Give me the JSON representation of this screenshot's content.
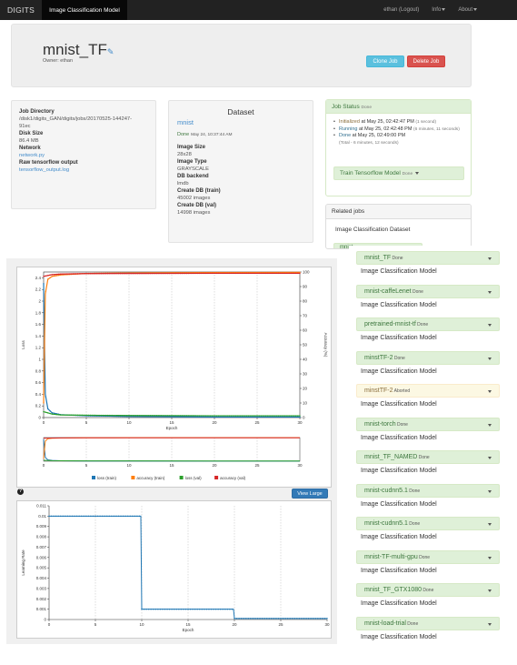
{
  "navbar": {
    "brand": "DIGITS",
    "active_tab": "Image Classification Model",
    "user": "ethan (Logout)",
    "info": "Info",
    "about": "About"
  },
  "header": {
    "job_name": "mnist_TF",
    "owner": "Owner: ethan",
    "clone_label": "Clone Job",
    "delete_label": "Delete Job"
  },
  "job_info": {
    "job_directory_label": "Job Directory",
    "job_directory_value_line1": "/disk1/digits_GAN/digits/jobs/20170525-144247-",
    "job_directory_value_line2": "91ec",
    "disk_size_label": "Disk Size",
    "disk_size_value": "86.4 MB",
    "network_label": "Network",
    "network_link": "network.py",
    "raw_output_label": "Raw tensorflow output",
    "raw_output_link": "tensorflow_output.log"
  },
  "dataset": {
    "title": "Dataset",
    "name": "mnist",
    "status": "Done",
    "status_time": "May 24, 10:37:44 AM",
    "image_size_label": "Image Size",
    "image_size_value": "28x28",
    "image_type_label": "Image Type",
    "image_type_value": "GRAYSCALE",
    "backend_label": "DB backend",
    "backend_value": "lmdb",
    "train_db_label": "Create DB (train)",
    "train_db_value": "45002 images",
    "val_db_label": "Create DB (val)",
    "val_db_value": "14998 images"
  },
  "job_status": {
    "heading": "Job Status",
    "heading_status": "Done",
    "items": [
      {
        "state": "Initialized",
        "text": " at May 25, 02:42:47 PM",
        "dur": "(1 second)"
      },
      {
        "state": "Running",
        "text": " at May 25, 02:42:48 PM",
        "dur": "(6 minutes, 11 seconds)"
      },
      {
        "state": "Done",
        "text": " at May 25, 02:49:00 PM",
        "dur": ""
      }
    ],
    "total": "(Total - 6 minutes, 12 seconds)",
    "model_button": "Train Tensorflow Model",
    "model_button_status": "Done"
  },
  "related_jobs": {
    "heading": "Related jobs",
    "first_type": "Image Classification Dataset",
    "partial_name": "mnist",
    "partial_status": "Done",
    "items": [
      {
        "name": "mnist_TF",
        "status": "Done",
        "type": "Image Classification Model"
      },
      {
        "name": "mnist-caffeLenet",
        "status": "Done",
        "type": "Image Classification Model"
      },
      {
        "name": "pretrained-mnist-tf",
        "status": "Done",
        "type": "Image Classification Model"
      },
      {
        "name": "minstTF-2",
        "status": "Done",
        "type": "Image Classification Model"
      },
      {
        "name": "minstTF-2",
        "status": "Aborted",
        "type": "Image Classification Model"
      },
      {
        "name": "mnist-torch",
        "status": "Done",
        "type": "Image Classification Model"
      },
      {
        "name": "mnist_TF_NAMED",
        "status": "Done",
        "type": "Image Classification Model"
      },
      {
        "name": "mnist-cudnn5.1",
        "status": "Done",
        "type": "Image Classification Model"
      },
      {
        "name": "mnist-cudnn5.1",
        "status": "Done",
        "type": "Image Classification Model"
      },
      {
        "name": "mnist-TF-multi-gpu",
        "status": "Done",
        "type": "Image Classification Model"
      },
      {
        "name": "mnist_TF_GTX1080",
        "status": "Done",
        "type": "Image Classification Model"
      },
      {
        "name": "mnist-load-trial",
        "status": "Done",
        "type": "Image Classification Model"
      }
    ]
  },
  "view_large_label": "View Large",
  "info_icon_glyph": "?",
  "edit_icon": "pencil-icon",
  "chart_data": [
    {
      "type": "line",
      "xlabel": "Epoch",
      "ylabel": "Loss",
      "y2label": "Accuracy (%)",
      "xlim": [
        0,
        30
      ],
      "ylim": [
        0,
        2.5
      ],
      "y2lim": [
        0,
        100
      ],
      "xticks": [
        "0",
        "5",
        "10",
        "15",
        "20",
        "25",
        "30"
      ],
      "yticks": [
        "0",
        "0.2",
        "0.4",
        "0.6",
        "0.8",
        "1",
        "1.2",
        "1.4",
        "1.6",
        "1.8",
        "2",
        "2.2",
        "2.4"
      ],
      "y2ticks": [
        "0",
        "10",
        "20",
        "30",
        "40",
        "50",
        "60",
        "70",
        "80",
        "90",
        "100"
      ],
      "legend": [
        "loss (train)",
        "accuracy (train)",
        "loss (val)",
        "accuracy (val)"
      ],
      "series": [
        {
          "name": "loss (train)",
          "color": "#1f77b4",
          "axis": "left",
          "x": [
            0,
            0.2,
            0.5,
            1,
            2,
            5,
            10,
            20,
            30
          ],
          "values": [
            2.3,
            0.4,
            0.15,
            0.08,
            0.05,
            0.03,
            0.02,
            0.01,
            0.01
          ]
        },
        {
          "name": "accuracy (train)",
          "color": "#ff7f0e",
          "axis": "right",
          "x": [
            0,
            0.2,
            0.5,
            1,
            2,
            5,
            10,
            20,
            30
          ],
          "values": [
            10,
            85,
            95,
            97,
            98,
            99,
            99.3,
            99.6,
            99.7
          ]
        },
        {
          "name": "loss (val)",
          "color": "#2ca02c",
          "axis": "left",
          "x": [
            0,
            1,
            2,
            5,
            10,
            20,
            30
          ],
          "values": [
            0.1,
            0.06,
            0.045,
            0.04,
            0.035,
            0.03,
            0.03
          ]
        },
        {
          "name": "accuracy (val)",
          "color": "#d62728",
          "axis": "right",
          "x": [
            0,
            1,
            2,
            5,
            10,
            20,
            30
          ],
          "values": [
            97,
            98.2,
            98.6,
            98.9,
            99.0,
            99.1,
            99.1
          ]
        }
      ]
    },
    {
      "type": "line",
      "xlabel": "Epoch",
      "ylabel": "Learning Rate",
      "xlim": [
        0,
        30
      ],
      "ylim": [
        0,
        0.011
      ],
      "xticks": [
        "0",
        "5",
        "10",
        "15",
        "20",
        "25",
        "30"
      ],
      "yticks": [
        "0",
        "0.001",
        "0.002",
        "0.003",
        "0.004",
        "0.005",
        "0.006",
        "0.007",
        "0.008",
        "0.009",
        "0.01",
        "0.011"
      ],
      "series": [
        {
          "name": "learning rate",
          "color": "#1f77b4",
          "x": [
            0,
            9.9,
            10,
            19.9,
            20,
            30
          ],
          "values": [
            0.01,
            0.01,
            0.001,
            0.001,
            0.0001,
            0.0001
          ]
        }
      ]
    }
  ]
}
